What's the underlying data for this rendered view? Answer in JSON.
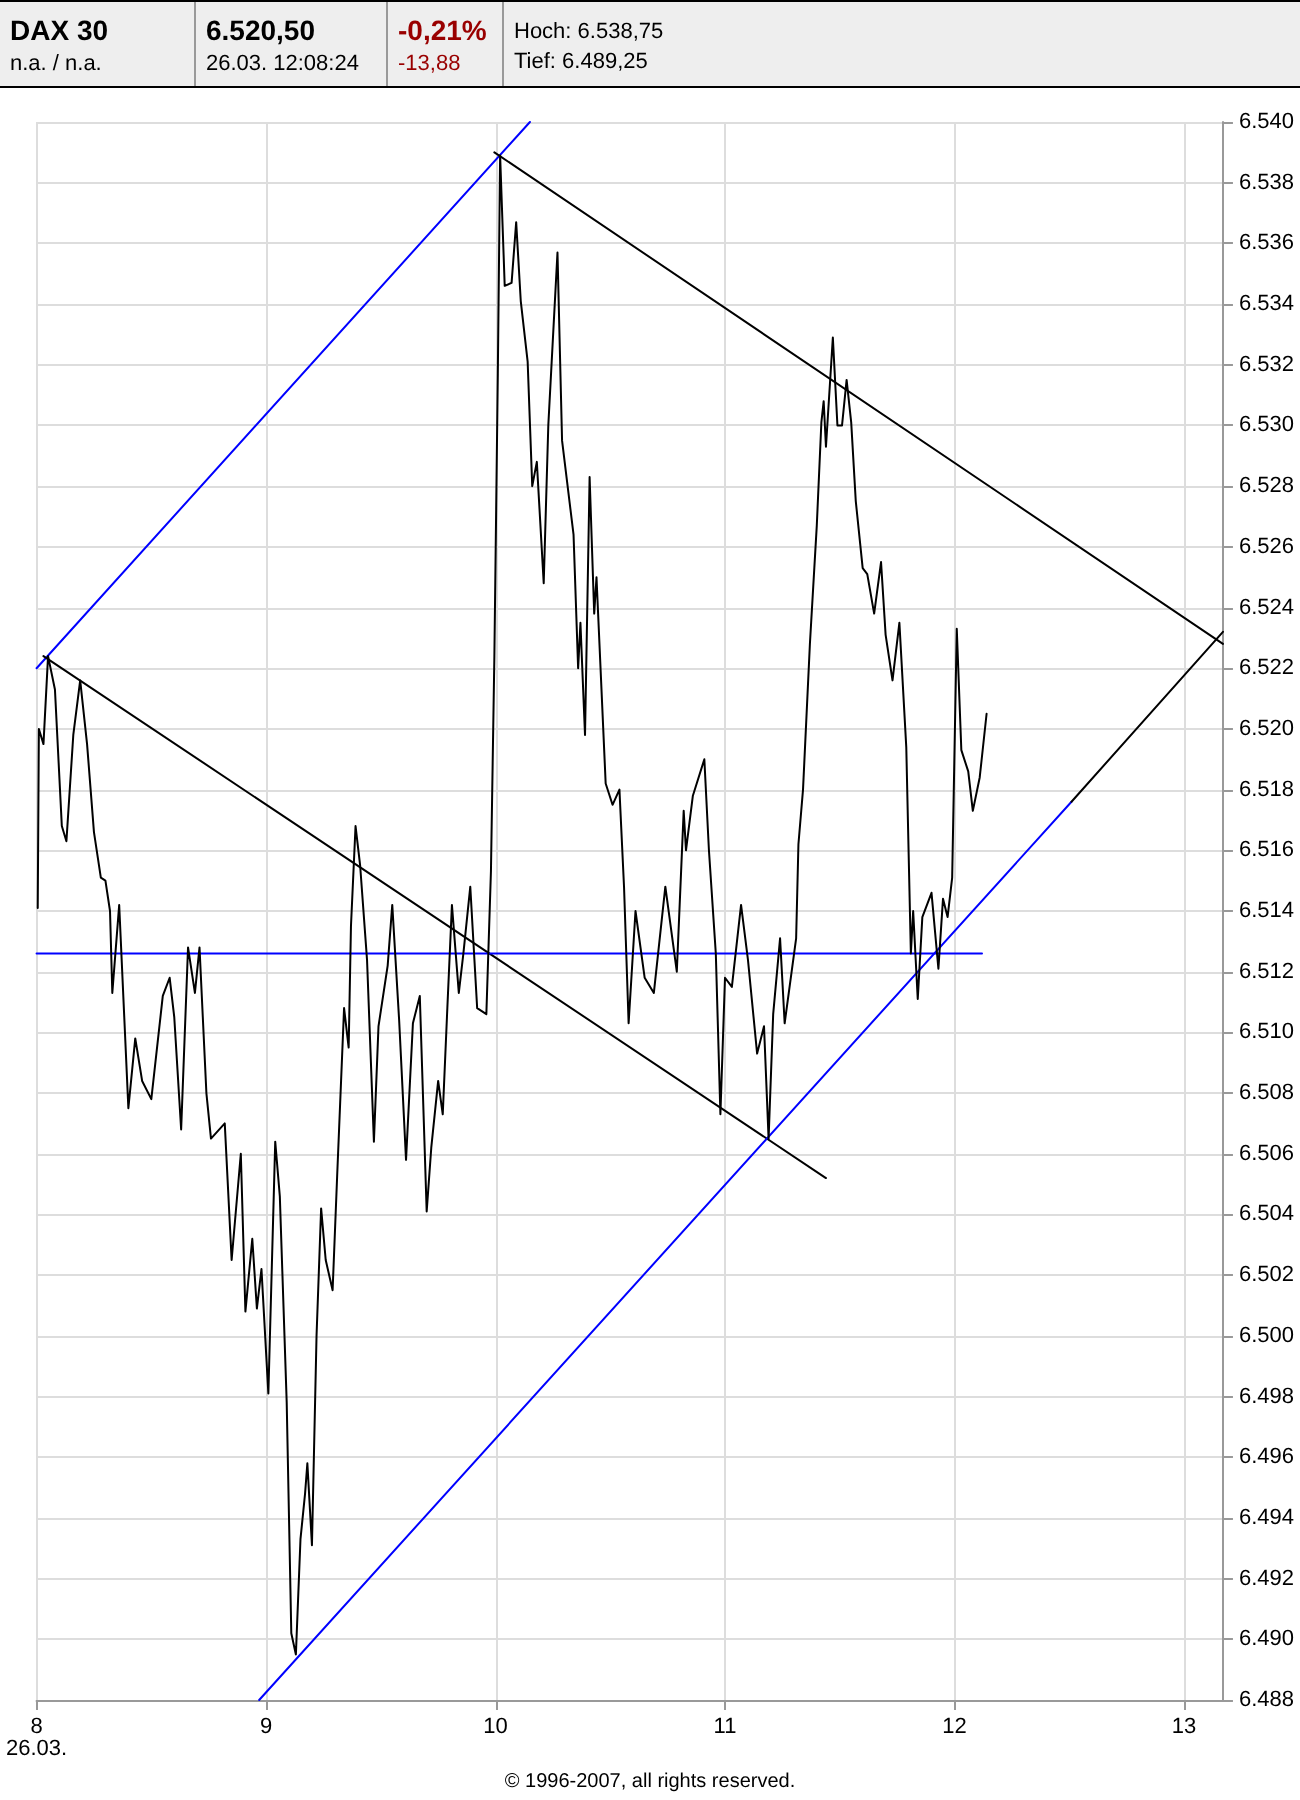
{
  "chart_data": {
    "type": "line",
    "title": "DAX 30",
    "annotations": [
      "6.520,50",
      "n.a.  /  n.a.",
      "26.03. 12:08:24",
      "-0,21%",
      "-13,88",
      "Hoch: 6.538,75",
      "Tief: 6.489,25",
      "© 1996-2007, all rights reserved."
    ],
    "xlim": [
      8,
      13.17
    ],
    "xticks": [
      {
        "value": 8,
        "label": "8\n26.03."
      },
      9,
      10,
      11,
      12,
      13
    ],
    "ylim": [
      6488,
      6540
    ],
    "yticks": [
      {
        "value": 6488,
        "label": "6.488"
      },
      {
        "value": 6490,
        "label": "6.490"
      },
      {
        "value": 6492,
        "label": "6.492"
      },
      {
        "value": 6494,
        "label": "6.494"
      },
      {
        "value": 6496,
        "label": "6.496"
      },
      {
        "value": 6498,
        "label": "6.498"
      },
      {
        "value": 6500,
        "label": "6.500"
      },
      {
        "value": 6502,
        "label": "6.502"
      },
      {
        "value": 6504,
        "label": "6.504"
      },
      {
        "value": 6506,
        "label": "6.506"
      },
      {
        "value": 6508,
        "label": "6.508"
      },
      {
        "value": 6510,
        "label": "6.510"
      },
      {
        "value": 6512,
        "label": "6.512"
      },
      {
        "value": 6514,
        "label": "6.514"
      },
      {
        "value": 6516,
        "label": "6.516"
      },
      {
        "value": 6518,
        "label": "6.518"
      },
      {
        "value": 6520,
        "label": "6.520"
      },
      {
        "value": 6522,
        "label": "6.522"
      },
      {
        "value": 6524,
        "label": "6.524"
      },
      {
        "value": 6526,
        "label": "6.526"
      },
      {
        "value": 6528,
        "label": "6.528"
      },
      {
        "value": 6530,
        "label": "6.530"
      },
      {
        "value": 6532,
        "label": "6.532"
      },
      {
        "value": 6534,
        "label": "6.534"
      },
      {
        "value": 6536,
        "label": "6.536"
      },
      {
        "value": 6538,
        "label": "6.538"
      },
      {
        "value": 6540,
        "label": "6.540"
      }
    ],
    "grid": true,
    "marker": "none",
    "line_style": "solid",
    "series": [
      {
        "color": "#000000",
        "x": [
          8.005,
          8.01,
          8.03,
          8.05,
          8.08,
          8.11,
          8.13,
          8.16,
          8.19,
          8.22,
          8.25,
          8.28,
          8.3,
          8.32,
          8.33,
          8.36,
          8.4,
          8.43,
          8.46,
          8.5,
          8.55,
          8.58,
          8.6,
          8.63,
          8.66,
          8.69,
          8.71,
          8.74,
          8.76,
          8.82,
          8.85,
          8.89,
          8.91,
          8.94,
          8.96,
          8.98,
          9.01,
          9.04,
          9.06,
          9.09,
          9.11,
          9.13,
          9.15,
          9.17,
          9.18,
          9.2,
          9.22,
          9.24,
          9.26,
          9.29,
          9.31,
          9.34,
          9.36,
          9.37,
          9.39,
          9.41,
          9.44,
          9.47,
          9.49,
          9.53,
          9.55,
          9.58,
          9.61,
          9.64,
          9.67,
          9.7,
          9.72,
          9.75,
          9.77,
          9.79,
          9.81,
          9.84,
          9.86,
          9.89,
          9.92,
          9.96,
          9.98,
          9.995,
          10.01,
          10.02,
          10.04,
          10.07,
          10.09,
          10.11,
          10.14,
          10.16,
          10.18,
          10.21,
          10.23,
          10.27,
          10.29,
          10.34,
          10.36,
          10.37,
          10.39,
          10.41,
          10.43,
          10.44,
          10.48,
          10.51,
          10.54,
          10.56,
          10.58,
          10.61,
          10.65,
          10.69,
          10.74,
          10.79,
          10.82,
          10.83,
          10.86,
          10.91,
          10.93,
          10.96,
          10.98,
          11,
          11.03,
          11.07,
          11.1,
          11.14,
          11.17,
          11.19,
          11.21,
          11.24,
          11.26,
          11.31,
          11.32,
          11.34,
          11.37,
          11.4,
          11.42,
          11.43,
          11.44,
          11.47,
          11.49,
          11.51,
          11.53,
          11.55,
          11.57,
          11.6,
          11.62,
          11.65,
          11.68,
          11.7,
          11.73,
          11.76,
          11.79,
          11.81,
          11.82,
          11.84,
          11.86,
          11.9,
          11.93,
          11.95,
          11.97,
          11.99,
          12.01,
          12.03,
          12.06,
          12.08,
          12.11,
          12.14
        ],
        "values": [
          6514.1,
          6520,
          6519.5,
          6522.4,
          6521.3,
          6516.8,
          6516.3,
          6519.8,
          6521.6,
          6519.5,
          6516.6,
          6515.1,
          6515,
          6514,
          6511.3,
          6514.2,
          6507.5,
          6509.8,
          6508.4,
          6507.8,
          6511.2,
          6511.8,
          6510.5,
          6506.8,
          6512.8,
          6511.3,
          6512.8,
          6508,
          6506.5,
          6507,
          6502.5,
          6506,
          6500.8,
          6503.2,
          6500.9,
          6502.2,
          6498.1,
          6506.4,
          6504.6,
          6497.8,
          6490.2,
          6489.5,
          6493.3,
          6494.8,
          6495.8,
          6493.1,
          6500,
          6504.2,
          6502.5,
          6501.5,
          6505.3,
          6510.8,
          6509.5,
          6513.5,
          6516.8,
          6515.5,
          6512.4,
          6506.4,
          6510.2,
          6512.2,
          6514.2,
          6510.4,
          6505.8,
          6510.3,
          6511.2,
          6504.1,
          6506.2,
          6508.4,
          6507.3,
          6510.8,
          6514.2,
          6511.3,
          6512.6,
          6514.8,
          6510.8,
          6510.6,
          6515.3,
          6522.4,
          6531.7,
          6538.9,
          6534.6,
          6534.7,
          6536.7,
          6534.1,
          6532.1,
          6528,
          6528.8,
          6524.8,
          6530,
          6535.7,
          6529.5,
          6526.4,
          6522,
          6523.5,
          6519.8,
          6528.3,
          6523.8,
          6525,
          6518.2,
          6517.5,
          6518,
          6514.8,
          6510.3,
          6514,
          6511.8,
          6511.3,
          6514.8,
          6512,
          6517.3,
          6516,
          6517.8,
          6519,
          6516,
          6512.6,
          6507.3,
          6511.8,
          6511.5,
          6514.2,
          6512.4,
          6509.3,
          6510.2,
          6506.5,
          6510.6,
          6513.1,
          6510.3,
          6513.1,
          6516.2,
          6518,
          6522.8,
          6526.7,
          6530.1,
          6530.8,
          6529.3,
          6532.9,
          6530,
          6530,
          6531.5,
          6530.1,
          6527.5,
          6525.3,
          6525.1,
          6523.8,
          6525.5,
          6523.1,
          6521.6,
          6523.5,
          6519.4,
          6512.6,
          6514,
          6511.1,
          6513.8,
          6514.6,
          6512.1,
          6514.4,
          6513.8,
          6515.1,
          6523.3,
          6519.3,
          6518.6,
          6517.3,
          6518.4,
          6520.5
        ]
      },
      {
        "color": "#0000ff",
        "x": [
          8,
          10.15
        ],
        "values": [
          6522,
          6540
        ]
      },
      {
        "color": "#000000",
        "x": [
          8.03,
          11.44
        ],
        "values": [
          6522.4,
          6505.2
        ]
      },
      {
        "color": "#000000",
        "x": [
          9.995,
          13.17
        ],
        "values": [
          6539,
          6522.8
        ]
      },
      {
        "color": "#0000ff",
        "x": [
          8.97,
          12.51
        ],
        "values": [
          6488,
          6517.6
        ]
      },
      {
        "color": "#000000",
        "x": [
          12.51,
          13.17
        ],
        "values": [
          6517.6,
          6523.2
        ]
      },
      {
        "color": "#0000ff",
        "x": [
          8,
          12.12
        ],
        "values": [
          6512.6,
          6512.6
        ]
      }
    ]
  }
}
